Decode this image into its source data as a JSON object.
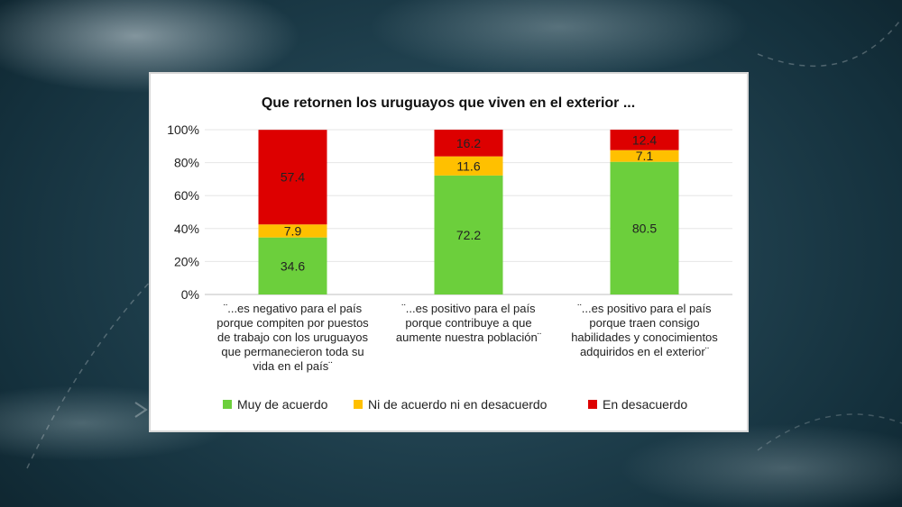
{
  "colors": {
    "muy": "#6ccf3c",
    "ni": "#ffc000",
    "en": "#dd0000",
    "axis": "#bfbfbf",
    "grid": "#e6e6e6",
    "label_on_red": "#ffffff",
    "label_default": "#222222"
  },
  "chart_data": {
    "type": "bar",
    "stacked": true,
    "title": "Que retornen los uruguayos que viven en el exterior ...",
    "ylim": [
      0,
      100
    ],
    "y_ticks": [
      "0%",
      "20%",
      "40%",
      "60%",
      "80%",
      "100%"
    ],
    "categories": [
      [
        "¨...es negativo para el país",
        "porque compiten por puestos",
        "de trabajo con los uruguayos",
        "que permanecieron toda su",
        "vida en el país¨"
      ],
      [
        "¨...es positivo para el país",
        "porque contribuye a que",
        "aumente nuestra población¨"
      ],
      [
        "¨...es positivo para el país",
        "porque traen consigo",
        "habilidades y conocimientos",
        "adquiridos en el exterior¨"
      ]
    ],
    "series": [
      {
        "name": "Muy de acuerdo",
        "values": [
          34.6,
          72.2,
          80.5
        ]
      },
      {
        "name": "Ni de acuerdo ni en desacuerdo",
        "values": [
          7.9,
          11.6,
          7.1
        ]
      },
      {
        "name": "En desacuerdo",
        "values": [
          57.4,
          16.2,
          12.4
        ]
      }
    ],
    "value_labels": [
      [
        "34.6",
        "72.2",
        "80.5"
      ],
      [
        "7.9",
        "11.6",
        "7.1"
      ],
      [
        "57.4",
        "16.2",
        "12.4"
      ]
    ],
    "legend_position": "bottom"
  }
}
